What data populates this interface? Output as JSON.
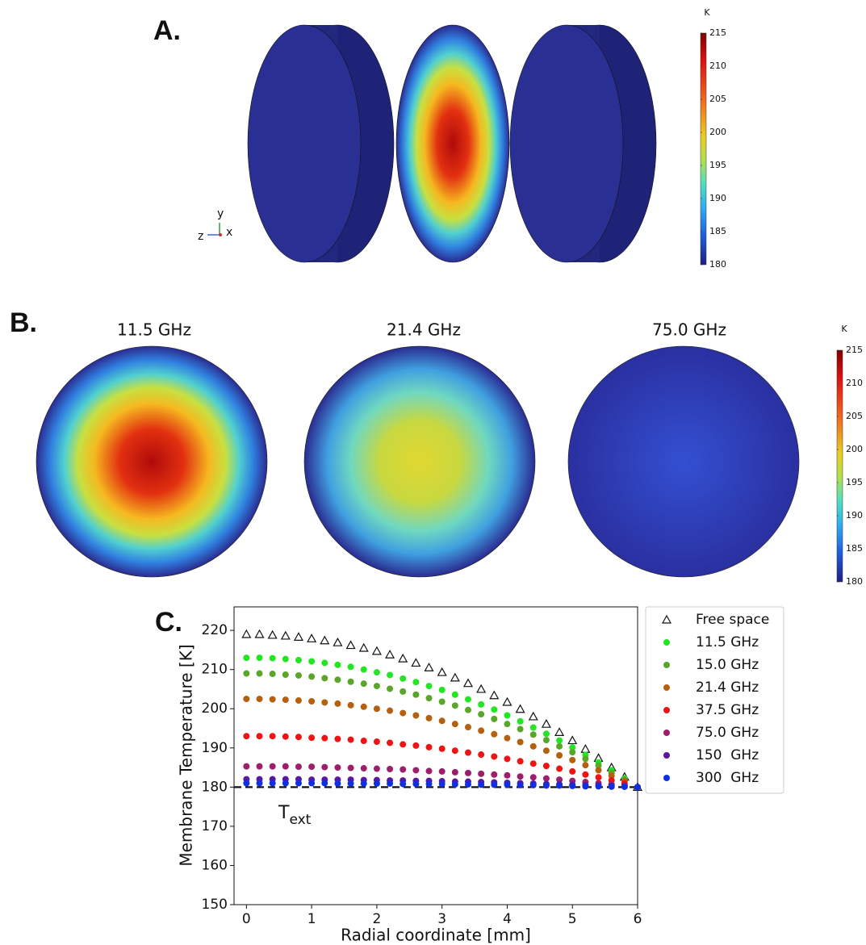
{
  "panel_a": {
    "label": "A.",
    "axes_labels": [
      "y",
      "z",
      "x"
    ],
    "colorbar": {
      "title": "K",
      "lim": [
        180,
        215
      ],
      "ticks": [
        180,
        185,
        190,
        195,
        200,
        205,
        210,
        215
      ]
    }
  },
  "panel_b": {
    "label": "B.",
    "titles": [
      "11.5 GHz",
      "21.4 GHz",
      "75.0 GHz"
    ],
    "colorbar": {
      "title": "K",
      "lim": [
        180,
        215
      ],
      "ticks": [
        180,
        185,
        190,
        195,
        200,
        205,
        210,
        215
      ]
    }
  },
  "chart_data": {
    "type": "scatter",
    "panel_label": "C.",
    "xlabel": "Radial coordinate [mm]",
    "ylabel": "Membrane Temperature [K]",
    "xlim": [
      -0.19,
      6
    ],
    "ylim": [
      150,
      226
    ],
    "xticks": [
      0,
      1,
      2,
      3,
      4,
      5,
      6
    ],
    "yticks": [
      150,
      160,
      170,
      180,
      190,
      200,
      210,
      220
    ],
    "hline": 180,
    "annotation": {
      "text": "T",
      "subscript": "ext"
    },
    "legend": "outside right",
    "x": [
      0,
      0.2,
      0.4,
      0.6,
      0.8,
      1.0,
      1.2,
      1.4,
      1.6,
      1.8,
      2.0,
      2.2,
      2.4,
      2.6,
      2.8,
      3.0,
      3.2,
      3.4,
      3.6,
      3.8,
      4.0,
      4.2,
      4.4,
      4.6,
      4.8,
      5.0,
      5.2,
      5.4,
      5.6,
      5.8,
      6.0
    ],
    "series": [
      {
        "name": "Free space",
        "color": "#111111",
        "marker": "triangle",
        "values": [
          219,
          219.0,
          218.8,
          218.6,
          218.3,
          217.9,
          217.4,
          216.9,
          216.2,
          215.5,
          214.7,
          213.8,
          212.8,
          211.7,
          210.5,
          209.3,
          207.9,
          206.5,
          205.0,
          203.4,
          201.7,
          199.9,
          198.0,
          196.1,
          194.0,
          191.9,
          189.7,
          187.4,
          185.0,
          182.6,
          180.0
        ]
      },
      {
        "name": "11.5 GHz",
        "color": "#22e622",
        "marker": "circle",
        "values": [
          213,
          213.0,
          212.9,
          212.7,
          212.4,
          212.1,
          211.7,
          211.2,
          210.7,
          210.0,
          209.3,
          208.6,
          207.7,
          206.8,
          205.8,
          204.8,
          203.6,
          202.4,
          201.1,
          199.8,
          198.3,
          196.8,
          195.2,
          193.6,
          191.9,
          190.1,
          188.2,
          186.3,
          184.3,
          182.2,
          180
        ]
      },
      {
        "name": "15.0 GHz",
        "color": "#5aa62a",
        "marker": "circle",
        "values": [
          209,
          209.0,
          208.9,
          208.7,
          208.5,
          208.2,
          207.8,
          207.4,
          206.9,
          206.4,
          205.8,
          205.1,
          204.4,
          203.6,
          202.7,
          201.8,
          200.8,
          199.7,
          198.6,
          197.4,
          196.1,
          194.8,
          193.4,
          192.0,
          190.4,
          188.9,
          187.2,
          185.5,
          183.7,
          181.9,
          180
        ]
      },
      {
        "name": "21.4 GHz",
        "color": "#b5600f",
        "marker": "circle",
        "values": [
          202.5,
          202.5,
          202.4,
          202.3,
          202.1,
          201.9,
          201.6,
          201.3,
          200.9,
          200.5,
          200.0,
          199.5,
          198.9,
          198.3,
          197.6,
          196.9,
          196.1,
          195.3,
          194.4,
          193.5,
          192.5,
          191.5,
          190.4,
          189.3,
          188.1,
          186.9,
          185.6,
          184.3,
          182.9,
          181.5,
          180
        ]
      },
      {
        "name": "37.5 GHz",
        "color": "#ee1414",
        "marker": "circle",
        "values": [
          193,
          193.0,
          193.0,
          192.9,
          192.8,
          192.6,
          192.5,
          192.3,
          192.1,
          191.8,
          191.6,
          191.3,
          190.9,
          190.6,
          190.2,
          189.8,
          189.3,
          188.8,
          188.3,
          187.8,
          187.2,
          186.6,
          186.0,
          185.4,
          184.7,
          184.0,
          183.2,
          182.5,
          181.7,
          180.9,
          180
        ]
      },
      {
        "name": "75.0 GHz",
        "color": "#9b1f6a",
        "marker": "circle",
        "values": [
          185.3,
          185.3,
          185.3,
          185.3,
          185.2,
          185.2,
          185.1,
          185.0,
          184.9,
          184.8,
          184.7,
          184.6,
          184.5,
          184.3,
          184.1,
          184.0,
          183.8,
          183.6,
          183.4,
          183.2,
          183.0,
          182.7,
          182.5,
          182.2,
          181.9,
          181.6,
          181.3,
          181.0,
          180.7,
          180.4,
          180
        ]
      },
      {
        "name": "150  GHz",
        "color": "#5b17a0",
        "marker": "circle",
        "values": [
          182,
          182.0,
          182.0,
          182.0,
          182.0,
          181.9,
          181.9,
          181.9,
          181.9,
          181.8,
          181.8,
          181.7,
          181.7,
          181.6,
          181.6,
          181.5,
          181.4,
          181.4,
          181.3,
          181.2,
          181.1,
          181.0,
          180.9,
          180.8,
          180.7,
          180.6,
          180.5,
          180.4,
          180.3,
          180.1,
          180
        ]
      },
      {
        "name": "300  GHz",
        "color": "#1030e0",
        "marker": "circle",
        "values": [
          181,
          181.0,
          181.0,
          181.0,
          181.0,
          181.0,
          181.0,
          180.9,
          180.9,
          180.9,
          180.9,
          180.9,
          180.8,
          180.8,
          180.8,
          180.8,
          180.7,
          180.7,
          180.6,
          180.6,
          180.6,
          180.5,
          180.5,
          180.4,
          180.4,
          180.3,
          180.2,
          180.2,
          180.1,
          180.1,
          180
        ]
      }
    ]
  }
}
